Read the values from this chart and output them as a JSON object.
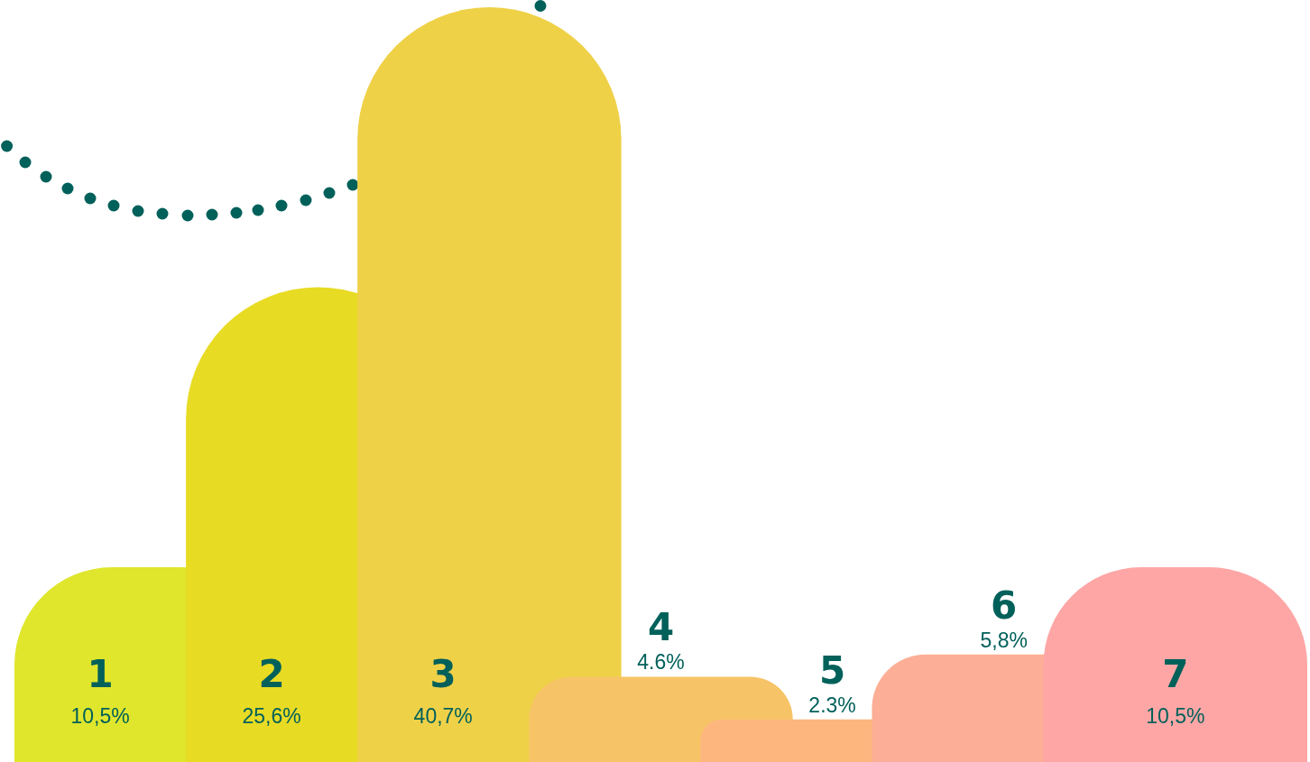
{
  "chart_data": {
    "type": "bar",
    "categories": [
      "1",
      "2",
      "3",
      "4",
      "5",
      "6",
      "7"
    ],
    "values": [
      10.5,
      25.6,
      40.7,
      4.6,
      2.3,
      5.8,
      10.5
    ],
    "colors": [
      "#dfe62c",
      "#e8db24",
      "#efd148",
      "#f6c466",
      "#fdb77e",
      "#fdae96",
      "#fea6a6"
    ],
    "value_labels": [
      "10,5%",
      "25,6%",
      "40,7%",
      "4.6%",
      "2.3%",
      "5,8%",
      "10,5%"
    ]
  }
}
